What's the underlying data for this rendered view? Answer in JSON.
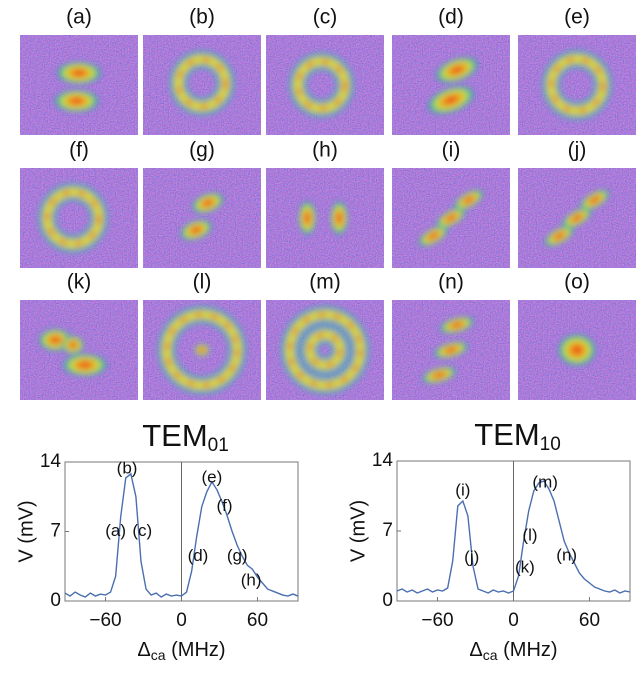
{
  "image_panels": {
    "labels": [
      "(a)",
      "(b)",
      "(c)",
      "(d)",
      "(e)",
      "(f)",
      "(g)",
      "(h)",
      "(i)",
      "(j)",
      "(k)",
      "(l)",
      "(m)",
      "(n)",
      "(o)"
    ]
  },
  "chart_data": [
    {
      "type": "line",
      "title": "TEM",
      "title_sub": "01",
      "x_label": "Δ",
      "x_label_sub": "ca",
      "x_label_unit": "(MHz)",
      "y_label": "V (mV)",
      "color": "#4a6fb0",
      "x": [
        -92,
        -88,
        -84,
        -80,
        -76,
        -72,
        -68,
        -64,
        -60,
        -56,
        -52,
        -48,
        -44,
        -40,
        -36,
        -32,
        -28,
        -24,
        -20,
        -16,
        -12,
        -8,
        -4,
        0,
        4,
        8,
        12,
        16,
        20,
        24,
        28,
        32,
        36,
        40,
        44,
        48,
        52,
        56,
        60,
        64,
        68,
        72,
        76,
        80,
        84,
        88,
        92
      ],
      "values": [
        0.8,
        0.5,
        0.9,
        0.6,
        0.4,
        0.8,
        0.5,
        0.7,
        0.6,
        0.9,
        2.5,
        8.5,
        12.4,
        12.8,
        10.5,
        4.0,
        1.2,
        0.6,
        0.8,
        0.4,
        0.7,
        0.5,
        0.6,
        0.5,
        0.9,
        3.0,
        6.5,
        9.5,
        11.0,
        12.0,
        11.2,
        10.0,
        8.6,
        7.0,
        5.6,
        4.5,
        3.6,
        3.2,
        2.4,
        1.8,
        1.2,
        1.0,
        0.8,
        0.6,
        0.5,
        0.7,
        0.5
      ],
      "xlim": [
        -92,
        92
      ],
      "ylim": [
        0,
        14
      ],
      "xticks": [
        {
          "value": -60,
          "label": "−60"
        },
        0,
        60
      ],
      "yticks": [
        0,
        7,
        14
      ],
      "annotations": [
        "(a)",
        "(b)",
        "(c)",
        "(d)",
        "(e)",
        "(f)",
        "(g)",
        "(h)"
      ]
    },
    {
      "type": "line",
      "title": "TEM",
      "title_sub": "10",
      "x_label": "Δ",
      "x_label_sub": "ca",
      "x_label_unit": "(MHz)",
      "y_label": "V (mV)",
      "color": "#4a6fb0",
      "x": [
        -92,
        -88,
        -84,
        -80,
        -76,
        -72,
        -68,
        -64,
        -60,
        -56,
        -52,
        -48,
        -44,
        -40,
        -36,
        -32,
        -28,
        -24,
        -20,
        -16,
        -12,
        -8,
        -4,
        0,
        4,
        8,
        12,
        16,
        20,
        24,
        28,
        32,
        36,
        40,
        44,
        48,
        52,
        56,
        60,
        64,
        68,
        72,
        76,
        80,
        84,
        88,
        92
      ],
      "values": [
        1.0,
        1.2,
        0.9,
        1.1,
        0.8,
        1.0,
        1.2,
        0.9,
        1.1,
        1.0,
        1.3,
        4.0,
        9.5,
        10.0,
        8.5,
        3.5,
        1.2,
        1.0,
        0.8,
        1.1,
        0.9,
        1.0,
        0.8,
        1.0,
        2.5,
        6.0,
        9.0,
        11.0,
        11.8,
        12.0,
        11.2,
        10.0,
        8.0,
        6.0,
        4.8,
        3.8,
        2.8,
        2.2,
        1.8,
        1.4,
        1.2,
        1.0,
        0.9,
        1.1,
        0.8,
        1.0,
        0.9
      ],
      "xlim": [
        -92,
        92
      ],
      "ylim": [
        0,
        14
      ],
      "xticks": [
        {
          "value": -60,
          "label": "−60"
        },
        0,
        60
      ],
      "yticks": [
        0,
        7,
        14
      ],
      "annotations": [
        "(i)",
        "(j)",
        "(k)",
        "(l)",
        "(m)",
        "(n)"
      ]
    }
  ]
}
